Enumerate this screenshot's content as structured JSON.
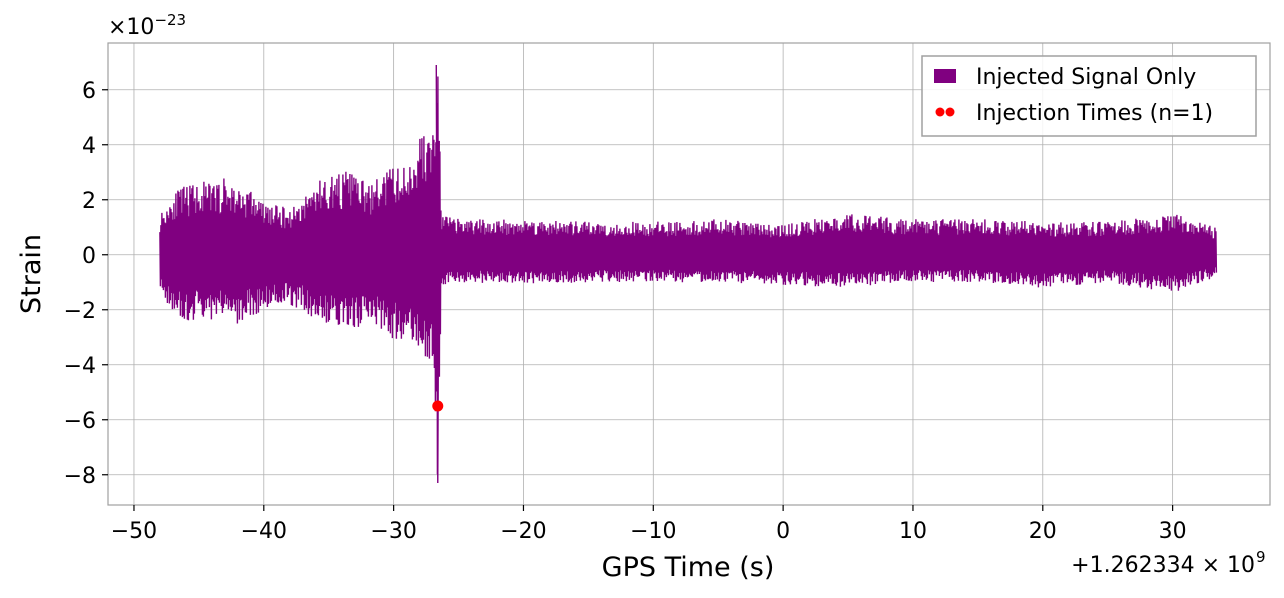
{
  "chart_data": {
    "type": "line",
    "xlabel": "GPS Time (s)",
    "ylabel": "Strain",
    "x_offset_label": "+1.262334 × 10",
    "x_offset_exp": "9",
    "y_multiplier_label": "×10",
    "y_multiplier_exp": "−23",
    "xlim": [
      -52,
      37.5
    ],
    "ylim": [
      -9.1,
      7.7
    ],
    "x_ticks": [
      -50,
      -40,
      -30,
      -20,
      -10,
      0,
      10,
      20,
      30
    ],
    "x_tick_labels": [
      "−50",
      "−40",
      "−30",
      "−20",
      "−10",
      "0",
      "10",
      "20",
      "30"
    ],
    "y_ticks": [
      -8,
      -6,
      -4,
      -2,
      0,
      2,
      4,
      6
    ],
    "y_tick_labels": [
      "−8",
      "−6",
      "−4",
      "−2",
      "0",
      "2",
      "4",
      "6"
    ],
    "grid": true,
    "legend_position": "top-right",
    "series": [
      {
        "name": "Injected Signal Only",
        "color": "#800080",
        "envelope": [
          {
            "x": -48.0,
            "lo": -1.5,
            "hi": 1.5
          },
          {
            "x": -47.0,
            "lo": -2.2,
            "hi": 2.3
          },
          {
            "x": -46.0,
            "lo": -2.6,
            "hi": 2.5
          },
          {
            "x": -45.0,
            "lo": -2.2,
            "hi": 2.7
          },
          {
            "x": -44.0,
            "lo": -2.4,
            "hi": 2.6
          },
          {
            "x": -43.0,
            "lo": -2.3,
            "hi": 2.8
          },
          {
            "x": -42.0,
            "lo": -2.6,
            "hi": 2.5
          },
          {
            "x": -41.0,
            "lo": -2.2,
            "hi": 2.4
          },
          {
            "x": -40.0,
            "lo": -2.1,
            "hi": 1.9
          },
          {
            "x": -39.0,
            "lo": -1.8,
            "hi": 1.8
          },
          {
            "x": -38.0,
            "lo": -1.9,
            "hi": 1.7
          },
          {
            "x": -37.0,
            "lo": -2.0,
            "hi": 2.1
          },
          {
            "x": -36.0,
            "lo": -2.4,
            "hi": 2.7
          },
          {
            "x": -35.0,
            "lo": -2.6,
            "hi": 2.9
          },
          {
            "x": -34.0,
            "lo": -2.9,
            "hi": 3.0
          },
          {
            "x": -33.0,
            "lo": -2.7,
            "hi": 3.1
          },
          {
            "x": -32.0,
            "lo": -2.5,
            "hi": 2.5
          },
          {
            "x": -31.0,
            "lo": -2.8,
            "hi": 2.9
          },
          {
            "x": -30.0,
            "lo": -3.1,
            "hi": 3.3
          },
          {
            "x": -29.0,
            "lo": -3.3,
            "hi": 3.2
          },
          {
            "x": -28.0,
            "lo": -3.4,
            "hi": 4.5
          },
          {
            "x": -27.0,
            "lo": -4.5,
            "hi": 4.5
          },
          {
            "x": -26.6,
            "lo": -8.3,
            "hi": 6.9
          },
          {
            "x": -26.3,
            "lo": -1.2,
            "hi": 1.5
          },
          {
            "x": -25.0,
            "lo": -1.0,
            "hi": 1.3
          },
          {
            "x": -20.0,
            "lo": -1.1,
            "hi": 1.3
          },
          {
            "x": -15.0,
            "lo": -1.0,
            "hi": 1.2
          },
          {
            "x": -10.0,
            "lo": -1.0,
            "hi": 1.2
          },
          {
            "x": -5.0,
            "lo": -1.0,
            "hi": 1.3
          },
          {
            "x": 0.0,
            "lo": -1.1,
            "hi": 1.1
          },
          {
            "x": 5.0,
            "lo": -1.2,
            "hi": 1.5
          },
          {
            "x": 10.0,
            "lo": -1.0,
            "hi": 1.3
          },
          {
            "x": 15.0,
            "lo": -1.0,
            "hi": 1.3
          },
          {
            "x": 20.0,
            "lo": -1.2,
            "hi": 1.2
          },
          {
            "x": 25.0,
            "lo": -1.0,
            "hi": 1.2
          },
          {
            "x": 30.0,
            "lo": -1.4,
            "hi": 1.5
          },
          {
            "x": 33.4,
            "lo": -0.8,
            "hi": 1.0
          }
        ]
      },
      {
        "name": "Injection Times (n=1)",
        "color": "#ff0000",
        "type": "scatter",
        "points": [
          {
            "x": -26.6,
            "y": -5.5
          }
        ]
      }
    ]
  }
}
